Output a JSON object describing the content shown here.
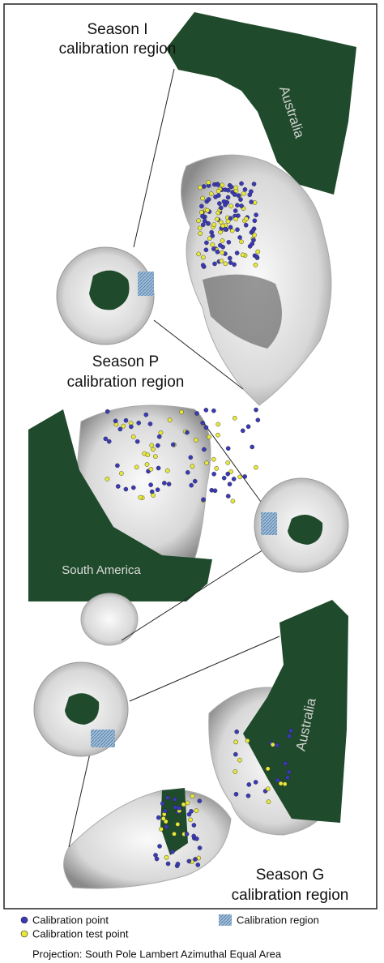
{
  "panels": [
    {
      "title_lines": [
        "Season I",
        "calibration region"
      ],
      "continent": "Australia"
    },
    {
      "title_lines": [
        "Season P",
        "calibration region"
      ],
      "continent": "South America"
    },
    {
      "title_lines": [
        "Season G",
        "calibration region"
      ],
      "continent": "Australia"
    }
  ],
  "legend": {
    "point": "Calibration point",
    "test_point": "Calibration test point",
    "region": "Calibration region"
  },
  "projection": "Projection: South Pole Lambert Azimuthal Equal Area"
}
